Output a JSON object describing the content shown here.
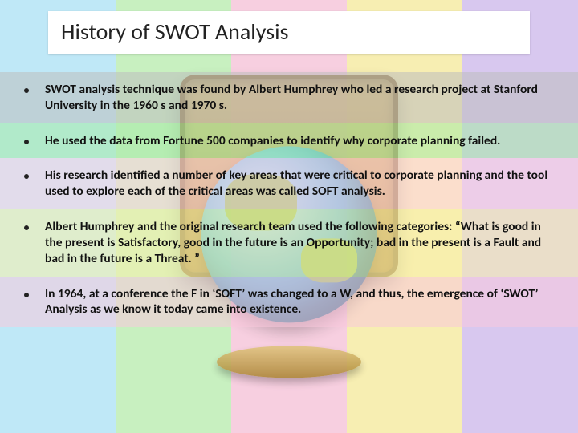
{
  "title": "History of SWOT Analysis",
  "stripes": [
    "#bfe8f7",
    "#c8f0c0",
    "#f7cfe0",
    "#f7eeb2",
    "#d8c8ef"
  ],
  "row_backgrounds": [
    "rgba(190,190,190,0.55)",
    "rgba(165,235,165,0.55)",
    "rgba(255,210,225,0.55)",
    "rgba(250,240,170,0.55)",
    "rgba(250,200,220,0.55)"
  ],
  "bullets": [
    "SWOT analysis technique was found by Albert Humphrey who led a research project at Stanford University in the 1960 s and 1970 s.",
    "He used the data from Fortune 500 companies to identify why corporate planning failed.",
    "His research identified a number of key areas that were critical to corporate planning and the tool used to explore each of the critical areas was called SOFT analysis.",
    "Albert Humphrey and the original research team used the following categories: “What is good in the present is Satisfactory, good in the future is an Opportunity; bad in the present is a Fault and bad in the future is a Threat. ”",
    "In 1964, at a conference the F in ‘SOFT’ was changed to a W, and thus, the emergence of ‘SWOT’ Analysis as we know it today came into existence."
  ]
}
